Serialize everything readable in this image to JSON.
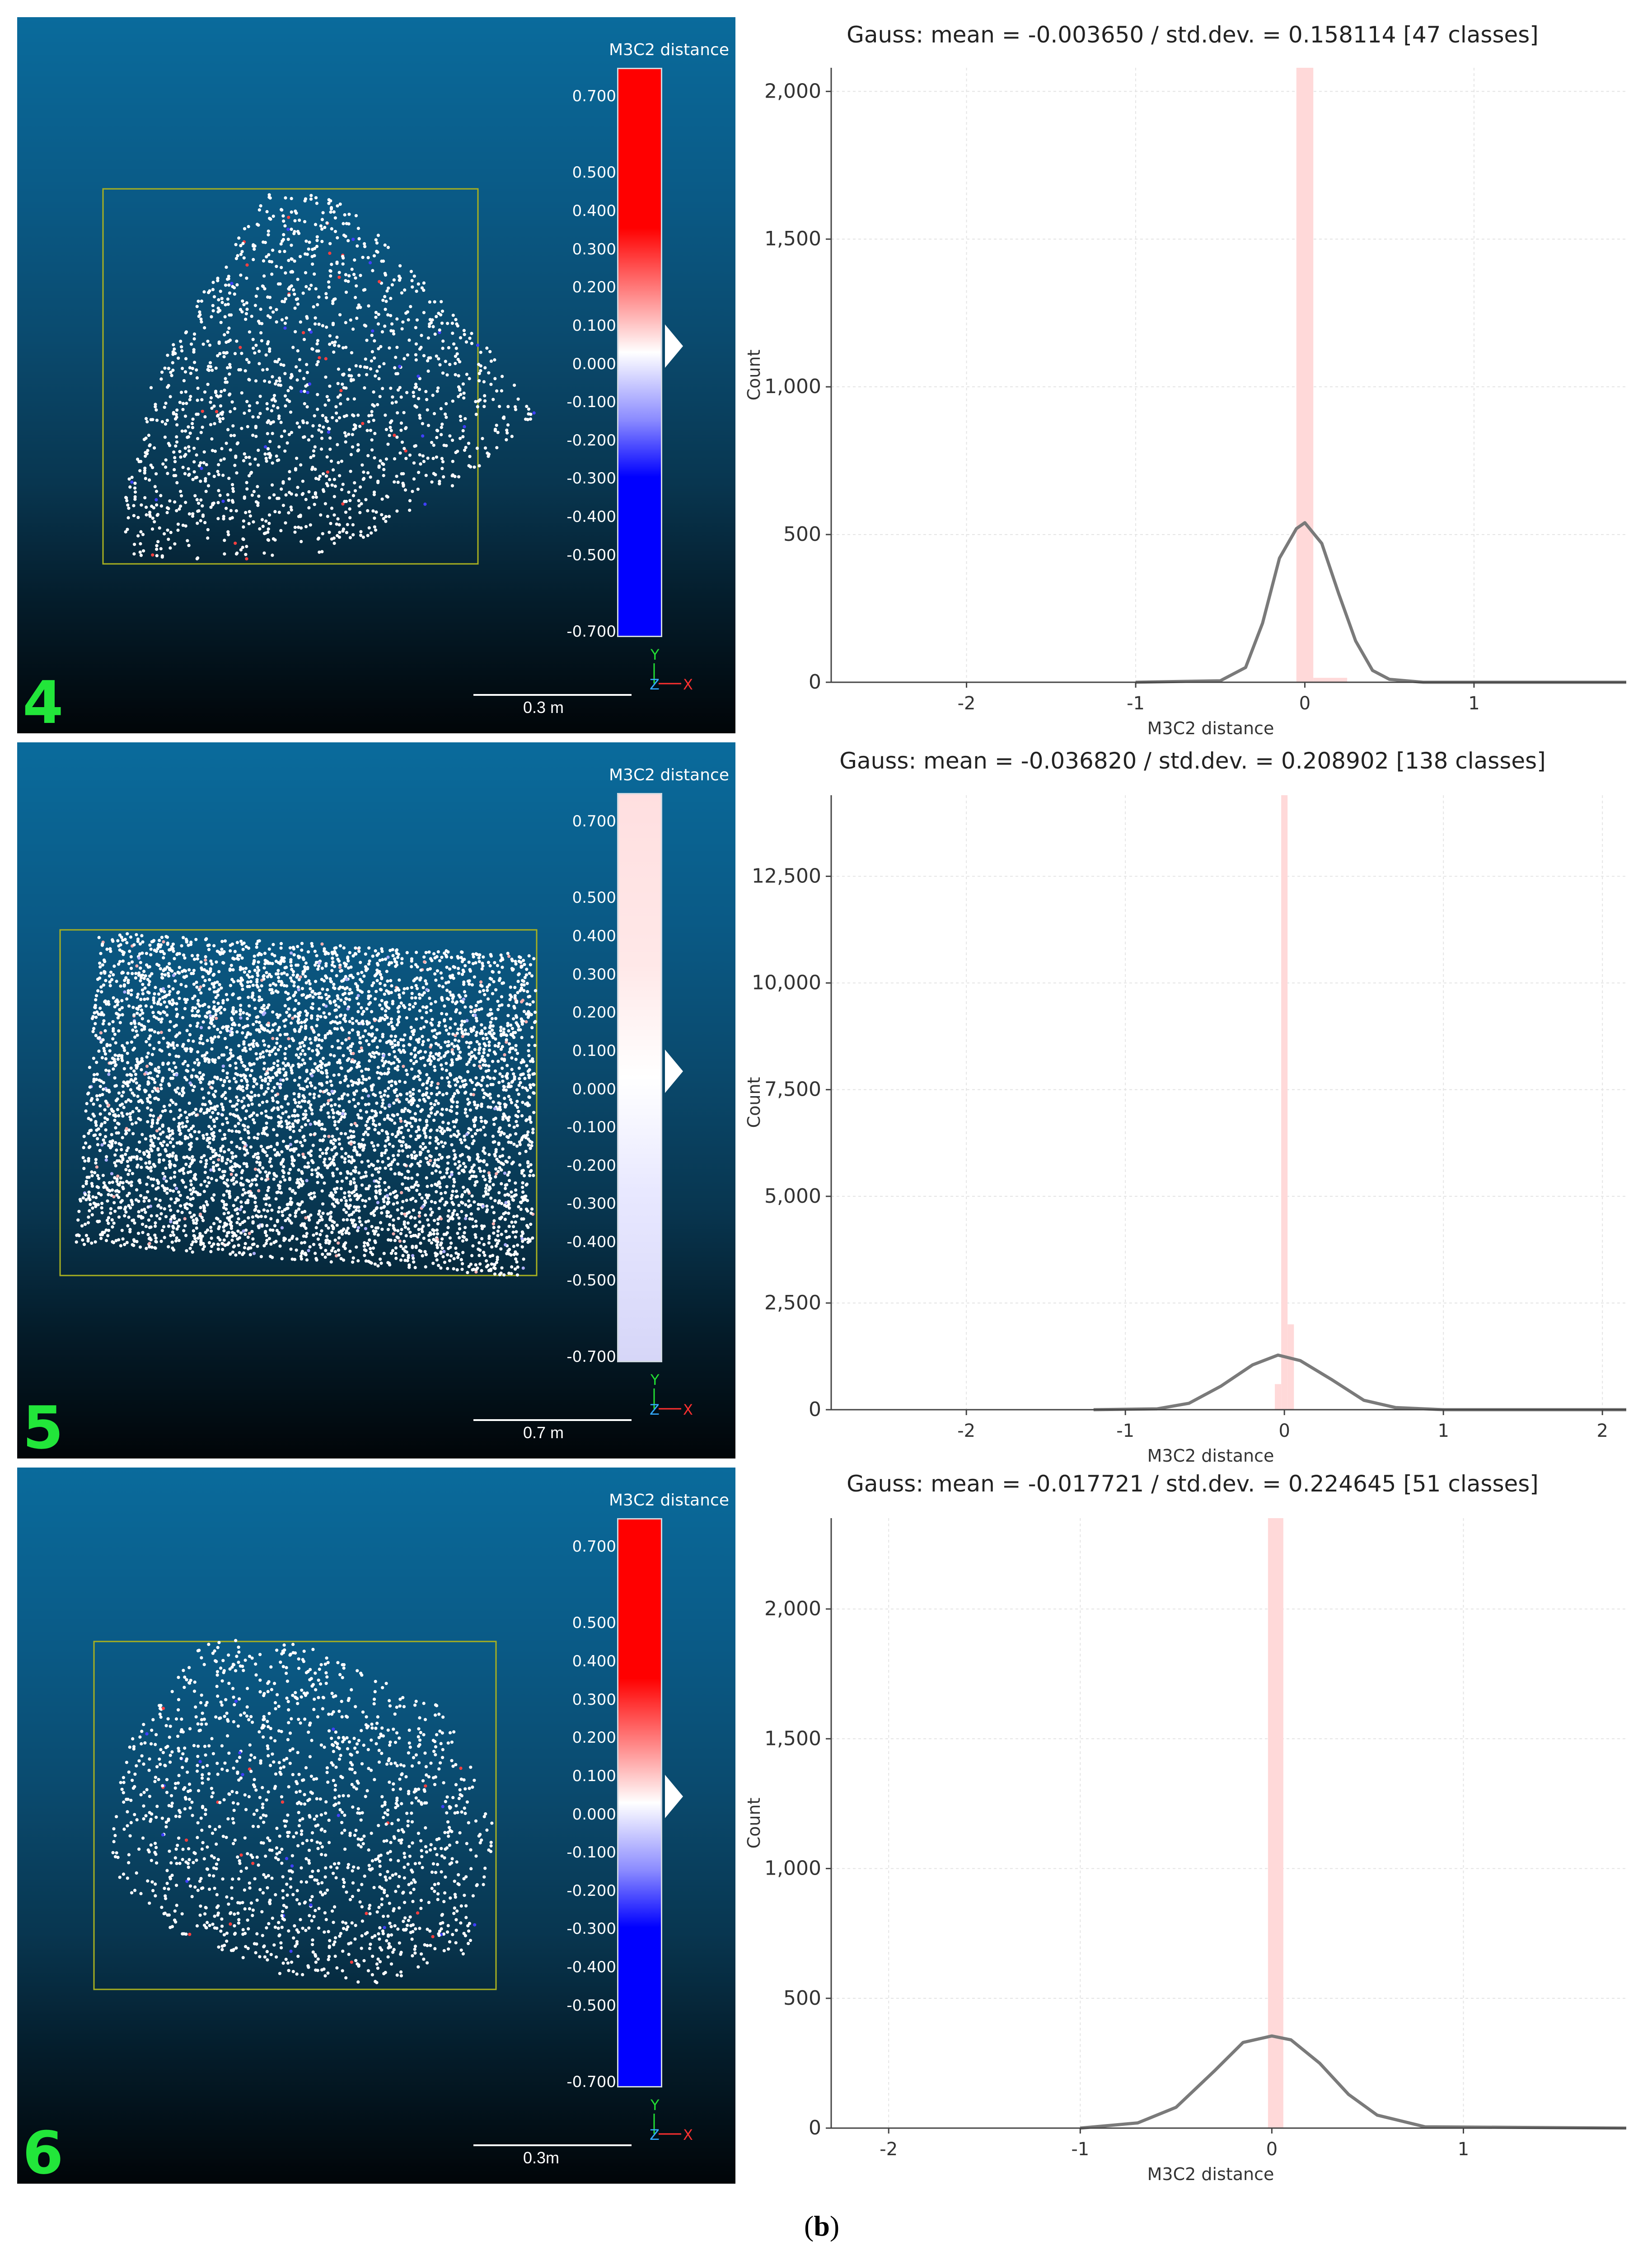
{
  "panels": [
    {
      "number": "4",
      "scale": {
        "title": "M3C2 distance",
        "ticks": [
          "0.700",
          "0.500",
          "0.400",
          "0.300",
          "0.200",
          "0.100",
          "0.000",
          "-0.100",
          "-0.200",
          "-0.300",
          "-0.400",
          "-0.500",
          "-0.700"
        ],
        "colormap": "red-white-blue"
      },
      "axes_label": {
        "y": "Y",
        "z": "Z",
        "x": "X"
      },
      "scale_bar_label": "0.3 m",
      "histogram": {
        "title": "Gauss: mean = -0.003650 / std.dev. = 0.158114 [47 classes]",
        "xlabel": "M3C2 distance",
        "ylabel": "Count"
      }
    },
    {
      "number": "5",
      "scale": {
        "title": "M3C2 distance",
        "ticks": [
          "0.700",
          "0.500",
          "0.400",
          "0.300",
          "0.200",
          "0.100",
          "0.000",
          "-0.100",
          "-0.200",
          "-0.300",
          "-0.400",
          "-0.500",
          "-0.700"
        ],
        "colormap": "pale"
      },
      "axes_label": {
        "y": "Y",
        "z": "Z",
        "x": "X"
      },
      "scale_bar_label": "0.7 m",
      "histogram": {
        "title": "Gauss: mean = -0.036820 / std.dev. = 0.208902 [138 classes]",
        "xlabel": "M3C2 distance",
        "ylabel": "Count"
      }
    },
    {
      "number": "6",
      "scale": {
        "title": "M3C2 distance",
        "ticks": [
          "0.700",
          "0.500",
          "0.400",
          "0.300",
          "0.200",
          "0.100",
          "0.000",
          "-0.100",
          "-0.200",
          "-0.300",
          "-0.400",
          "-0.500",
          "-0.700"
        ],
        "colormap": "red-white-blue"
      },
      "axes_label": {
        "y": "Y",
        "z": "Z",
        "x": "X"
      },
      "scale_bar_label": "0.3m",
      "histogram": {
        "title": "Gauss: mean = -0.017721 / std.dev. = 0.224645 [51 classes]",
        "xlabel": "M3C2 distance",
        "ylabel": "Count"
      }
    }
  ],
  "caption": {
    "open": "(",
    "letter": "b",
    "close": ")"
  },
  "chart_data": [
    {
      "type": "bar",
      "title": "Gauss: mean = -0.003650 / std.dev. = 0.158114 [47 classes]",
      "xlabel": "M3C2 distance",
      "ylabel": "Count",
      "xlim": [
        -2.8,
        1.9
      ],
      "ylim": [
        0,
        2080
      ],
      "xticks": [
        -2,
        -1,
        0,
        1
      ],
      "xtick_labels": [
        "-2",
        "-1",
        "0",
        "1"
      ],
      "yticks": [
        0,
        500,
        1000,
        1500,
        2000
      ],
      "ytick_labels": [
        "0",
        "500",
        "1,000",
        "1,500",
        "2,000"
      ],
      "bars": [
        {
          "x0": -0.05,
          "x1": 0.05,
          "value": 2080
        },
        {
          "x0": 0.05,
          "x1": 0.25,
          "value": 15
        }
      ],
      "gauss_curve": {
        "x": [
          -1.0,
          -0.5,
          -0.35,
          -0.25,
          -0.15,
          -0.05,
          0.0,
          0.1,
          0.2,
          0.3,
          0.4,
          0.5,
          0.7,
          1.9
        ],
        "y": [
          0,
          5,
          50,
          200,
          420,
          520,
          540,
          470,
          300,
          140,
          40,
          10,
          0,
          0
        ]
      }
    },
    {
      "type": "bar",
      "title": "Gauss: mean = -0.036820 / std.dev. = 0.208902 [138 classes]",
      "xlabel": "M3C2 distance",
      "ylabel": "Count",
      "xlim": [
        -2.85,
        2.15
      ],
      "ylim": [
        0,
        14400
      ],
      "xticks": [
        -2,
        -1,
        0,
        1,
        2
      ],
      "xtick_labels": [
        "-2",
        "-1",
        "0",
        "1",
        "2"
      ],
      "yticks": [
        0,
        2500,
        5000,
        7500,
        10000,
        12500
      ],
      "ytick_labels": [
        "0",
        "2,500",
        "5,000",
        "7,500",
        "10,000",
        "12,500"
      ],
      "bars": [
        {
          "x0": -0.06,
          "x1": -0.02,
          "value": 600
        },
        {
          "x0": -0.02,
          "x1": 0.02,
          "value": 14400
        },
        {
          "x0": 0.02,
          "x1": 0.06,
          "value": 2000
        }
      ],
      "gauss_curve": {
        "x": [
          -1.2,
          -0.8,
          -0.6,
          -0.4,
          -0.2,
          -0.04,
          0.1,
          0.3,
          0.5,
          0.7,
          1.0,
          2.15
        ],
        "y": [
          0,
          20,
          150,
          550,
          1050,
          1280,
          1150,
          700,
          220,
          50,
          0,
          0
        ]
      }
    },
    {
      "type": "bar",
      "title": "Gauss: mean = -0.017721 / std.dev. = 0.224645 [51 classes]",
      "xlabel": "M3C2 distance",
      "ylabel": "Count",
      "xlim": [
        -2.3,
        1.85
      ],
      "ylim": [
        0,
        2350
      ],
      "xticks": [
        -2,
        -1,
        0,
        1
      ],
      "xtick_labels": [
        "-2",
        "-1",
        "0",
        "1"
      ],
      "yticks": [
        0,
        500,
        1000,
        1500,
        2000
      ],
      "ytick_labels": [
        "0",
        "500",
        "1,000",
        "1,500",
        "2,000"
      ],
      "bars": [
        {
          "x0": -0.02,
          "x1": 0.06,
          "value": 2350
        }
      ],
      "gauss_curve": {
        "x": [
          -1.0,
          -0.7,
          -0.5,
          -0.3,
          -0.15,
          0.0,
          0.1,
          0.25,
          0.4,
          0.55,
          0.8,
          1.85
        ],
        "y": [
          0,
          20,
          80,
          220,
          330,
          355,
          340,
          250,
          130,
          50,
          5,
          0
        ]
      }
    }
  ]
}
